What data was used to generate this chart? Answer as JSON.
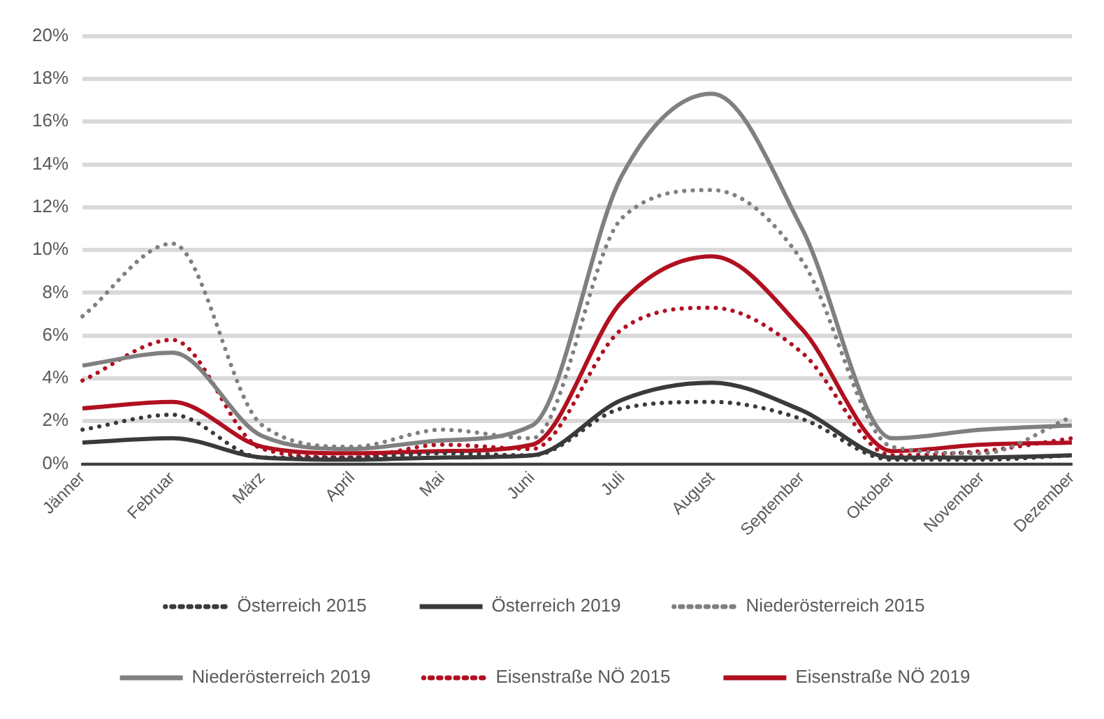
{
  "chart_data": {
    "type": "line",
    "categories": [
      "Jänner",
      "Februar",
      "März",
      "April",
      "Mai",
      "Juni",
      "Juli",
      "August",
      "September",
      "Oktober",
      "November",
      "Dezember"
    ],
    "series": [
      {
        "name": "Österreich 2015",
        "color": "#3a3a3a",
        "line_style": "dotted",
        "values": [
          1.6,
          2.3,
          0.3,
          0.3,
          0.5,
          0.4,
          2.6,
          2.9,
          2.1,
          0.2,
          0.2,
          0.4
        ]
      },
      {
        "name": "Österreich 2019",
        "color": "#3a3a3a",
        "line_style": "solid",
        "values": [
          1.0,
          1.2,
          0.3,
          0.2,
          0.3,
          0.4,
          3.0,
          3.8,
          2.5,
          0.3,
          0.3,
          0.4
        ]
      },
      {
        "name": "Niederösterreich 2015",
        "color": "#808080",
        "line_style": "dotted",
        "values": [
          6.9,
          10.3,
          1.8,
          0.8,
          1.6,
          1.2,
          11.5,
          12.8,
          9.5,
          0.8,
          0.5,
          2.2
        ]
      },
      {
        "name": "Niederösterreich 2019",
        "color": "#808080",
        "line_style": "solid",
        "values": [
          4.6,
          5.2,
          1.3,
          0.7,
          1.1,
          1.8,
          13.5,
          17.3,
          11.0,
          1.2,
          1.6,
          1.8
        ]
      },
      {
        "name": "Eisenstraße NÖ 2015",
        "color": "#b01020",
        "line_style": "dotted",
        "values": [
          3.9,
          5.8,
          0.7,
          0.3,
          0.9,
          0.7,
          6.3,
          7.3,
          5.2,
          0.4,
          0.6,
          1.2
        ]
      },
      {
        "name": "Eisenstraße NÖ 2019",
        "color": "#b01020",
        "line_style": "solid",
        "values": [
          2.6,
          2.9,
          0.8,
          0.5,
          0.6,
          0.9,
          7.6,
          9.7,
          6.3,
          0.6,
          0.9,
          1.0
        ]
      }
    ],
    "ylim": [
      0,
      20
    ],
    "yticks": [
      {
        "value": 0,
        "label": "0%"
      },
      {
        "value": 2,
        "label": "2%"
      },
      {
        "value": 4,
        "label": "4%"
      },
      {
        "value": 6,
        "label": "6%"
      },
      {
        "value": 8,
        "label": "8%"
      },
      {
        "value": 10,
        "label": "10%"
      },
      {
        "value": 12,
        "label": "12%"
      },
      {
        "value": 14,
        "label": "14%"
      },
      {
        "value": 16,
        "label": "16%"
      },
      {
        "value": 18,
        "label": "18%"
      },
      {
        "value": 20,
        "label": "20%"
      }
    ],
    "grid": "y",
    "legend": "bottom",
    "marker": "none"
  }
}
